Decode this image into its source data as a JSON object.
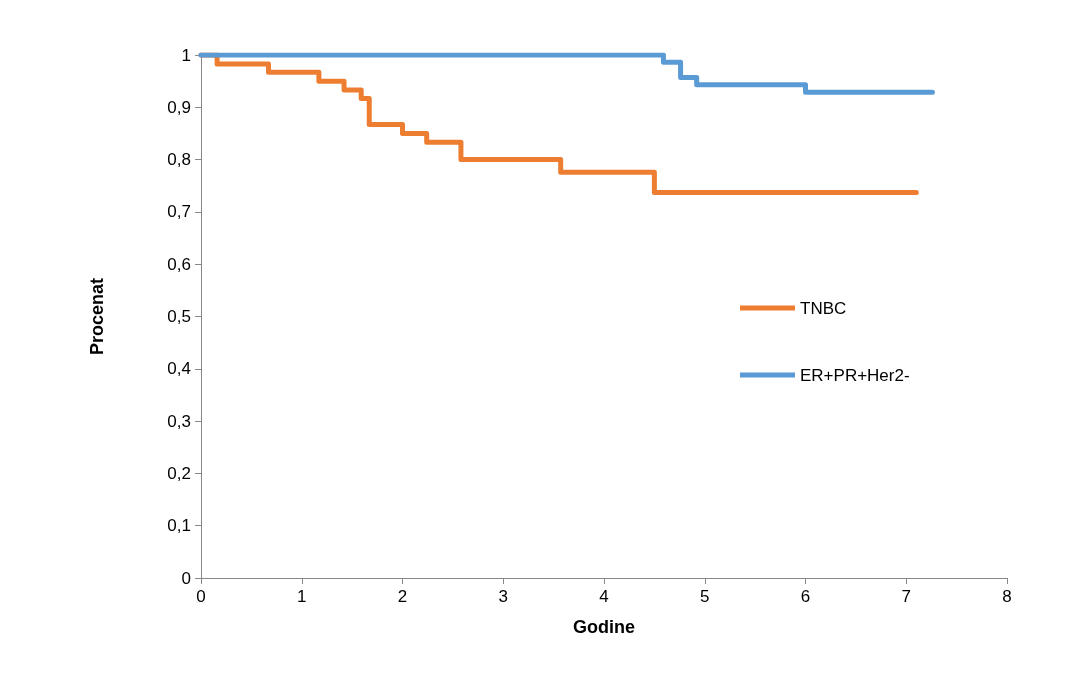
{
  "chart_data": {
    "type": "step",
    "xlabel": "Godine",
    "ylabel": "Procenat",
    "xlim": [
      0,
      8
    ],
    "xticks": [
      0,
      1,
      2,
      3,
      4,
      5,
      6,
      7,
      8
    ],
    "ylim": [
      0,
      1
    ],
    "yticks": [
      0,
      {
        "value": 0.1,
        "label": "0,1"
      },
      {
        "value": 0.2,
        "label": "0,2"
      },
      {
        "value": 0.3,
        "label": "0,3"
      },
      {
        "value": 0.4,
        "label": "0,4"
      },
      {
        "value": 0.5,
        "label": "0,5"
      },
      {
        "value": 0.6,
        "label": "0,6"
      },
      {
        "value": 0.7,
        "label": "0,7"
      },
      {
        "value": 0.8,
        "label": "0,8"
      },
      {
        "value": 0.9,
        "label": "0,9"
      },
      1
    ],
    "grid": false,
    "legend": "right",
    "marker": "none",
    "series": [
      {
        "name": "TNBC",
        "color": "#ed7d31",
        "x": [
          0,
          0.16,
          0.67,
          1.17,
          1.42,
          1.59,
          1.67,
          2.0,
          2.24,
          2.58,
          3.57,
          4.5,
          7.1
        ],
        "values": [
          1,
          0.983,
          0.967,
          0.95,
          0.933,
          0.917,
          0.867,
          0.85,
          0.833,
          0.8,
          0.776,
          0.737,
          0.737
        ]
      },
      {
        "name": "ER+PR+Her2-",
        "color": "#5b9bd5",
        "x": [
          0,
          4.59,
          4.76,
          4.92,
          6.0,
          7.26
        ],
        "values": [
          1,
          0.986,
          0.957,
          0.943,
          0.929,
          0.929
        ]
      }
    ]
  }
}
